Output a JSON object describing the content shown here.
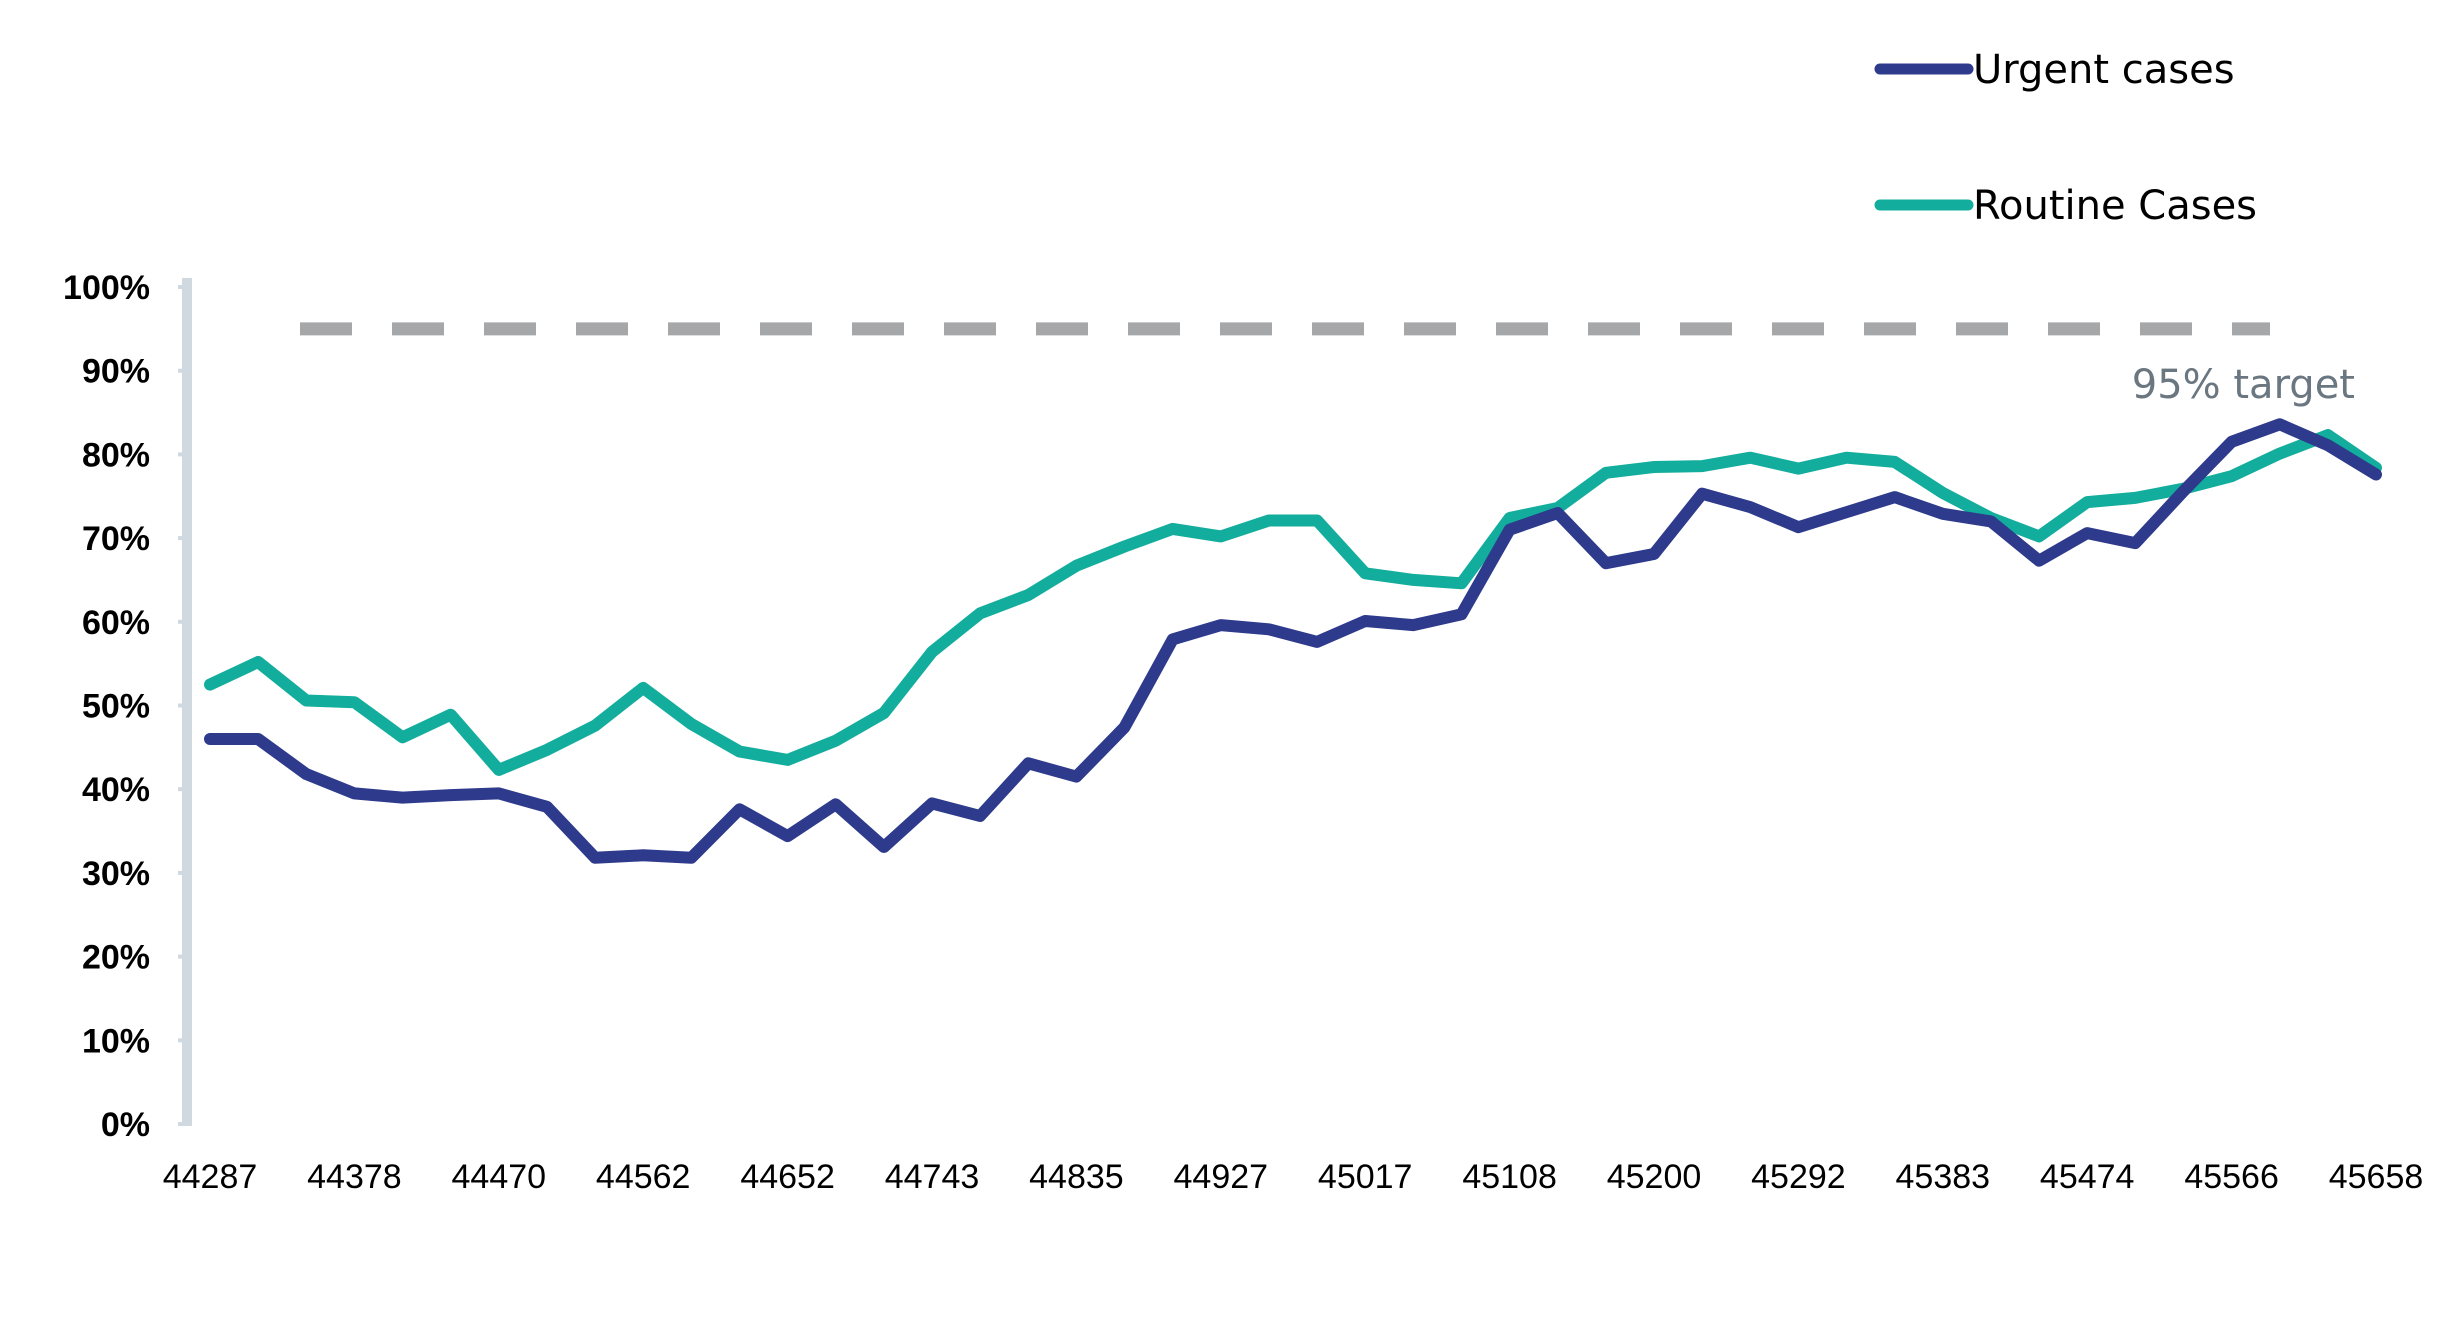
{
  "chart_data": {
    "type": "line",
    "x_ticks": [
      "44287",
      "44378",
      "44470",
      "44562",
      "44652",
      "44743",
      "44835",
      "44927",
      "45017",
      "45108",
      "45200",
      "45292",
      "45383",
      "45474",
      "45566",
      "45658"
    ],
    "y_ticks": [
      "0%",
      "10%",
      "20%",
      "30%",
      "40%",
      "50%",
      "60%",
      "70%",
      "80%",
      "90%",
      "100%"
    ],
    "ylim": [
      0,
      100
    ],
    "grid": false,
    "legend_position": "top-right",
    "colors": {
      "urgent": "#2e3a8c",
      "routine": "#12ad9c",
      "target": "#a5a7a9",
      "axis": "#cfd9df",
      "target_label": "#6a7680"
    },
    "series": [
      {
        "name": "Urgent cases",
        "values": [
          46,
          46,
          41.8,
          39.5,
          39,
          39.3,
          39.5,
          37.9,
          31.8,
          32.1,
          31.8,
          37.6,
          34.4,
          38.2,
          33.1,
          38.3,
          36.8,
          43.1,
          41.5,
          47.4,
          57.9,
          59.6,
          59.1,
          57.6,
          60.1,
          59.6,
          60.9,
          71,
          73,
          67,
          68.1,
          75.3,
          73.7,
          71.3,
          73.1,
          74.9,
          72.9,
          72,
          67.3,
          70.6,
          69.4,
          75.6,
          81.5,
          83.6,
          81.1,
          77.6
        ],
        "x_from": 44287,
        "x_to": 45658
      },
      {
        "name": "Routine Cases",
        "values": [
          52.5,
          55.2,
          50.6,
          50.4,
          46.2,
          48.9,
          42.3,
          44.7,
          47.6,
          52.1,
          47.8,
          44.5,
          43.5,
          45.8,
          49.1,
          56.4,
          61,
          63.2,
          66.7,
          69,
          71.1,
          70.2,
          72.1,
          72.1,
          65.8,
          65,
          64.6,
          72.4,
          73.6,
          77.8,
          78.5,
          78.6,
          79.6,
          78.3,
          79.6,
          79.1,
          75.4,
          72.4,
          70.2,
          74.3,
          74.8,
          75.9,
          77.4,
          80.1,
          82.3,
          78.4
        ],
        "x_from": 44287,
        "x_to": 45658
      }
    ],
    "target": {
      "value": 95,
      "label": "95% target"
    }
  }
}
